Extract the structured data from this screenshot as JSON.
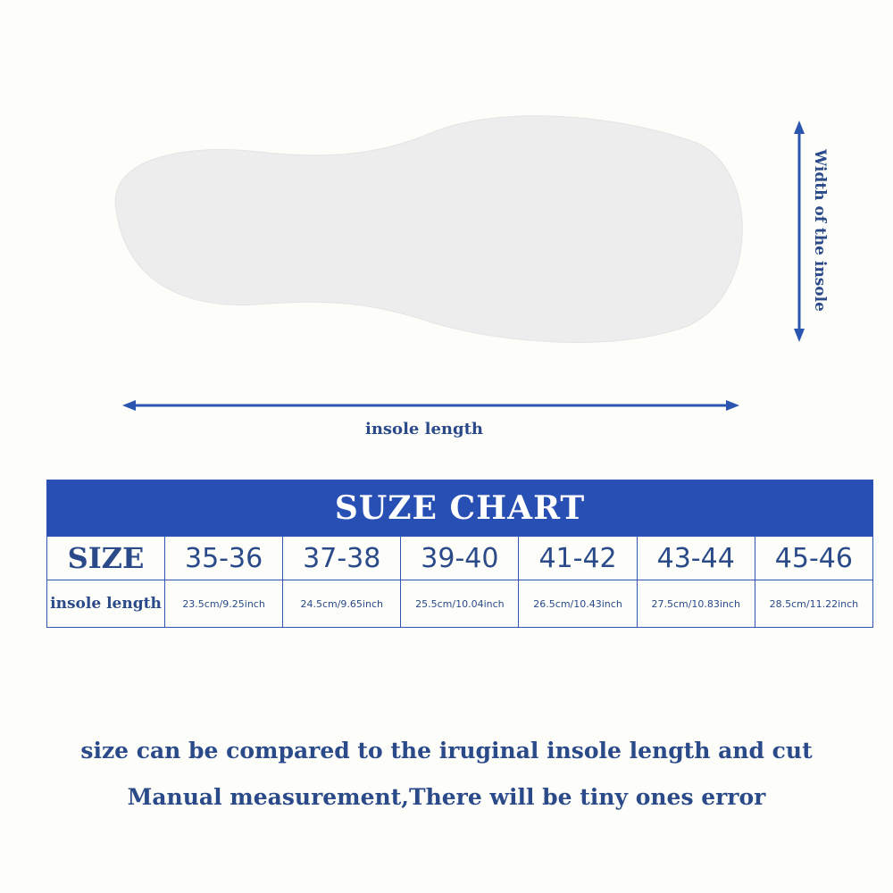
{
  "labels": {
    "width": "Width of the insole",
    "length": "insole length"
  },
  "table": {
    "title": "SUZE CHART",
    "rows": [
      [
        "SIZE",
        "35-36",
        "37-38",
        "39-40",
        "41-42",
        "43-44",
        "45-46"
      ],
      [
        "insole length",
        "23.5cm/9.25inch",
        "24.5cm/9.65inch",
        "25.5cm/10.04inch",
        "26.5cm/10.43inch",
        "27.5cm/10.83inch",
        "28.5cm/11.22inch"
      ]
    ]
  },
  "notes": [
    "size can be compared to the iruginal insole length and cut",
    "Manual measurement,There will be tiny ones error"
  ]
}
